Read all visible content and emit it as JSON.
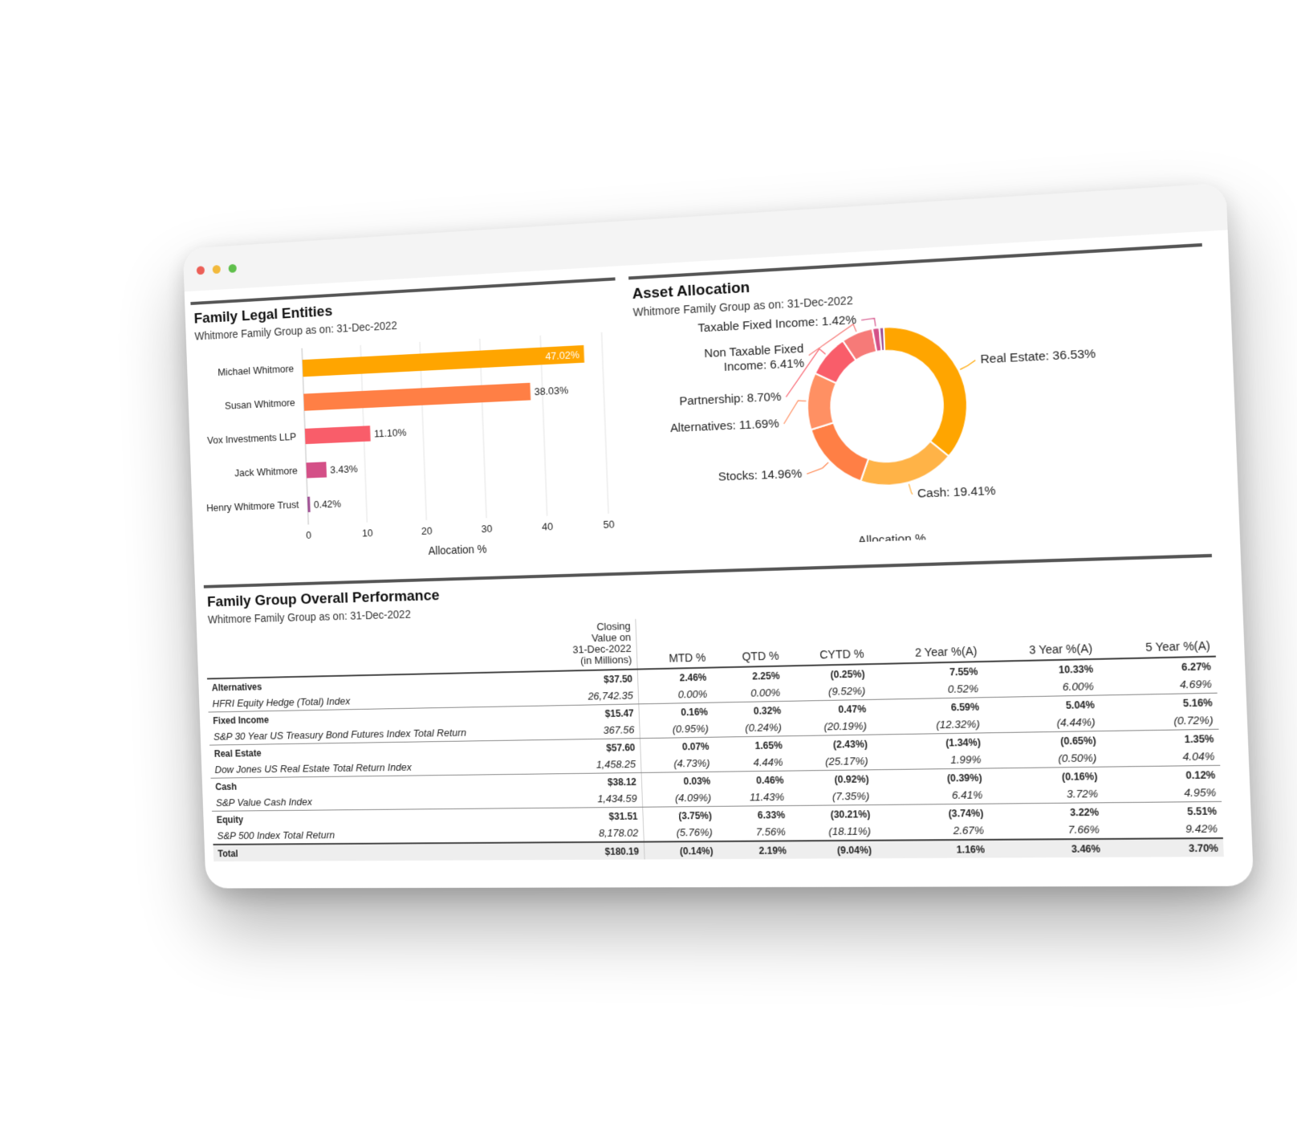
{
  "window": {
    "controls": [
      "close",
      "minimize",
      "maximize"
    ]
  },
  "entities": {
    "title": "Family Legal Entities",
    "subtitle": "Whitmore Family Group as on: 31-Dec-2022"
  },
  "allocation": {
    "title": "Asset Allocation",
    "subtitle": "Whitmore Family Group as on: 31-Dec-2022"
  },
  "performance": {
    "title": "Family Group Overall Performance",
    "subtitle": "Whitmore Family Group as on: 31-Dec-2022",
    "closing_header": [
      "Closing",
      "Value on",
      "31-Dec-2022",
      "(in Millions)"
    ],
    "columns": [
      "MTD %",
      "QTD %",
      "CYTD %",
      "2 Year %(A)",
      "3 Year %(A)",
      "5 Year %(A)"
    ],
    "rows": [
      {
        "category": "Alternatives",
        "values": [
          "$37.50",
          "2.46%",
          "2.25%",
          "(0.25%)",
          "7.55%",
          "10.33%",
          "6.27%"
        ],
        "index": "HFRI Equity Hedge (Total) Index",
        "index_values": [
          "26,742.35",
          "0.00%",
          "0.00%",
          "(9.52%)",
          "0.52%",
          "6.00%",
          "4.69%"
        ]
      },
      {
        "category": "Fixed Income",
        "values": [
          "$15.47",
          "0.16%",
          "0.32%",
          "0.47%",
          "6.59%",
          "5.04%",
          "5.16%"
        ],
        "index": "S&P 30 Year US Treasury Bond Futures Index Total Return",
        "index_values": [
          "367.56",
          "(0.95%)",
          "(0.24%)",
          "(20.19%)",
          "(12.32%)",
          "(4.44%)",
          "(0.72%)"
        ]
      },
      {
        "category": "Real Estate",
        "values": [
          "$57.60",
          "0.07%",
          "1.65%",
          "(2.43%)",
          "(1.34%)",
          "(0.65%)",
          "1.35%"
        ],
        "index": "Dow Jones US Real Estate Total Return Index",
        "index_values": [
          "1,458.25",
          "(4.73%)",
          "4.44%",
          "(25.17%)",
          "1.99%",
          "(0.50%)",
          "4.04%"
        ]
      },
      {
        "category": "Cash",
        "values": [
          "$38.12",
          "0.03%",
          "0.46%",
          "(0.92%)",
          "(0.39%)",
          "(0.16%)",
          "0.12%"
        ],
        "index": "S&P Value Cash Index",
        "index_values": [
          "1,434.59",
          "(4.09%)",
          "11.43%",
          "(7.35%)",
          "6.41%",
          "3.72%",
          "4.95%"
        ]
      },
      {
        "category": "Equity",
        "values": [
          "$31.51",
          "(3.75%)",
          "6.33%",
          "(30.21%)",
          "(3.74%)",
          "3.22%",
          "5.51%"
        ],
        "index": "S&P 500 Index Total Return",
        "index_values": [
          "8,178.02",
          "(5.76%)",
          "7.56%",
          "(18.11%)",
          "2.67%",
          "7.66%",
          "9.42%"
        ]
      }
    ],
    "total": {
      "label": "Total",
      "values": [
        "$180.19",
        "(0.14%)",
        "2.19%",
        "(9.04%)",
        "1.16%",
        "3.46%",
        "3.70%"
      ]
    }
  },
  "chart_data": [
    {
      "type": "bar",
      "orientation": "horizontal",
      "categories": [
        "Michael Whitmore",
        "Susan Whitmore",
        "Vox Investments LLP",
        "Jack Whitmore",
        "Henry Whitmore Trust"
      ],
      "values": [
        47.02,
        38.03,
        11.1,
        3.43,
        0.42
      ],
      "labels": [
        "47.02%",
        "38.03%",
        "11.10%",
        "3.43%",
        "0.42%"
      ],
      "colors": [
        "#FFA500",
        "#FF7F45",
        "#F95D6A",
        "#D45087",
        "#A05195"
      ],
      "xlabel": "Allocation %",
      "xlim": [
        0,
        50
      ],
      "xticks": [
        "0",
        "10",
        "20",
        "30",
        "40",
        "50"
      ],
      "grid": true
    },
    {
      "type": "pie",
      "donut": true,
      "labels": [
        "Real Estate",
        "Cash",
        "Stocks",
        "Alternatives",
        "Partnership",
        "Non Taxable Fixed Income",
        "Taxable Fixed Income",
        ""
      ],
      "values": [
        36.53,
        19.41,
        14.96,
        11.69,
        8.7,
        6.41,
        1.42,
        0.88
      ],
      "display_labels": [
        "Real Estate: 36.53%",
        "Cash: 19.41%",
        "Stocks: 14.96%",
        "Alternatives: 11.69%",
        "Partnership: 8.70%",
        [
          "Non Taxable Fixed",
          "Income: 6.41%"
        ],
        "Taxable Fixed Income: 1.42%",
        ""
      ],
      "colors": [
        "#FFA500",
        "#FFB347",
        "#FF7F45",
        "#FF9063",
        "#F95D6A",
        "#F67A78",
        "#D45087",
        "#A05195"
      ],
      "xlabel": "Allocation %"
    }
  ]
}
